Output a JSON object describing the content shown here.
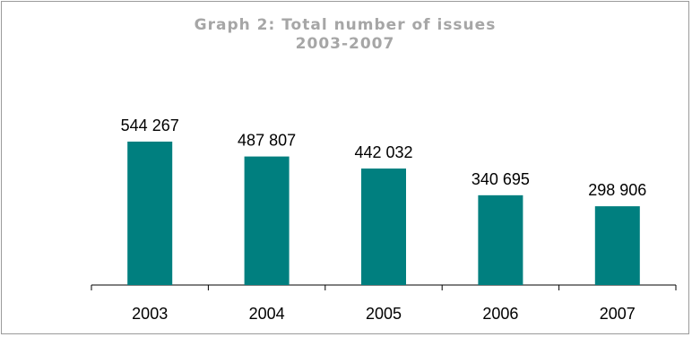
{
  "chart_data": {
    "type": "bar",
    "title_line1": "Graph 2: Total number of issues",
    "title_line2": "2003-2007",
    "categories": [
      "2003",
      "2004",
      "2005",
      "2006",
      "2007"
    ],
    "values": [
      544267,
      487807,
      442032,
      340695,
      298906
    ],
    "value_labels": [
      "544 267",
      "487 807",
      "442 032",
      "340 695",
      "298 906"
    ],
    "bar_color": "#007F7F",
    "ylim": [
      0,
      600000
    ],
    "grid": false,
    "legend": "none"
  }
}
